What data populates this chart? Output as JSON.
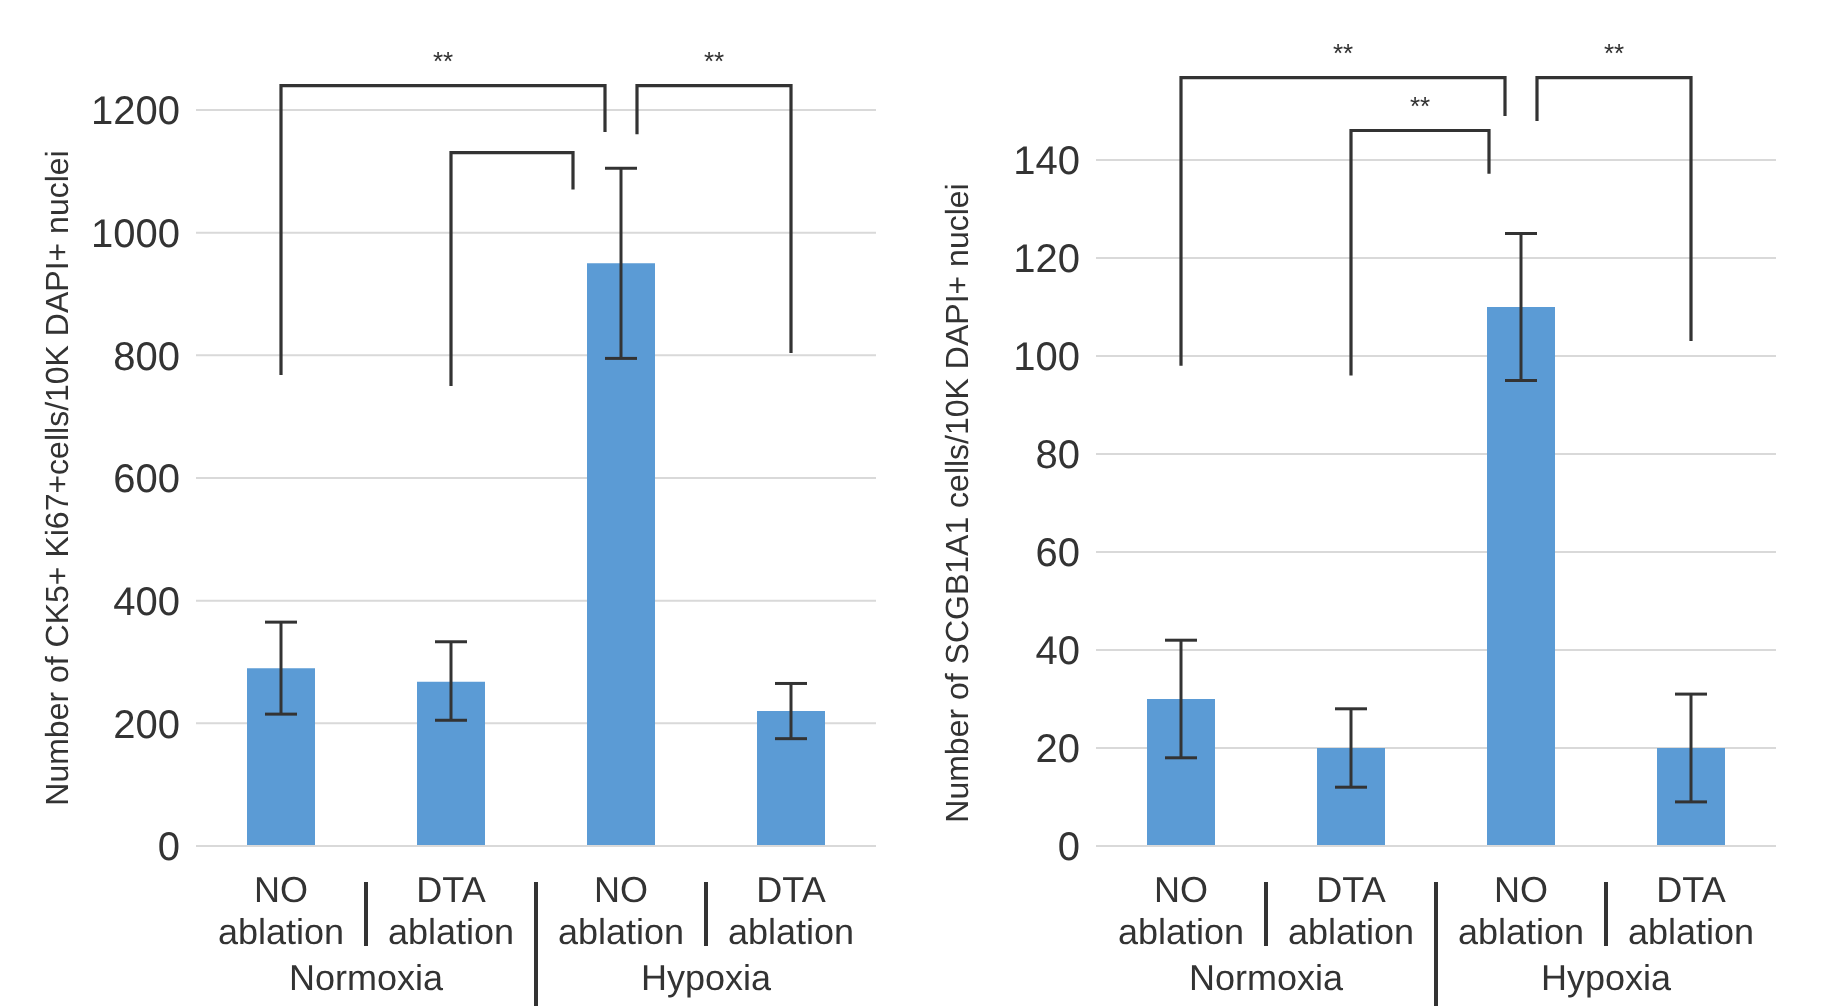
{
  "chart_data": [
    {
      "type": "bar",
      "ylabel": "Number of CK5+ Ki67+cells/10K DAPI+ nuclei",
      "categories": [
        "NO ablation",
        "DTA ablation",
        "NO ablation",
        "DTA ablation"
      ],
      "values": [
        290,
        268,
        950,
        220
      ],
      "errors": [
        [
          215,
          365
        ],
        [
          205,
          333
        ],
        [
          795,
          1105
        ],
        [
          175,
          265
        ]
      ],
      "color": "#5b9bd5",
      "ylim": [
        0,
        1200
      ],
      "yticks": [
        0,
        200,
        400,
        600,
        800,
        1000,
        1200
      ],
      "grid": "y",
      "annotations": [
        "**",
        "**",
        "Normoxia",
        "Hypoxia"
      ]
    },
    {
      "type": "bar",
      "ylabel": "Number of SCGB1A1 cells/10K DAPI+ nuclei",
      "categories": [
        "NO ablation",
        "DTA ablation",
        "NO ablation",
        "DTA ablation"
      ],
      "values": [
        30,
        20,
        110,
        20
      ],
      "errors": [
        [
          18,
          42
        ],
        [
          12,
          28
        ],
        [
          95,
          125
        ],
        [
          9,
          31
        ]
      ],
      "color": "#5b9bd5",
      "ylim": [
        0,
        140
      ],
      "yticks": [
        0,
        20,
        40,
        60,
        80,
        100,
        120,
        140
      ],
      "grid": "y",
      "annotations": [
        "**",
        "**",
        "**",
        "Normoxia",
        "Hypoxia"
      ]
    }
  ]
}
